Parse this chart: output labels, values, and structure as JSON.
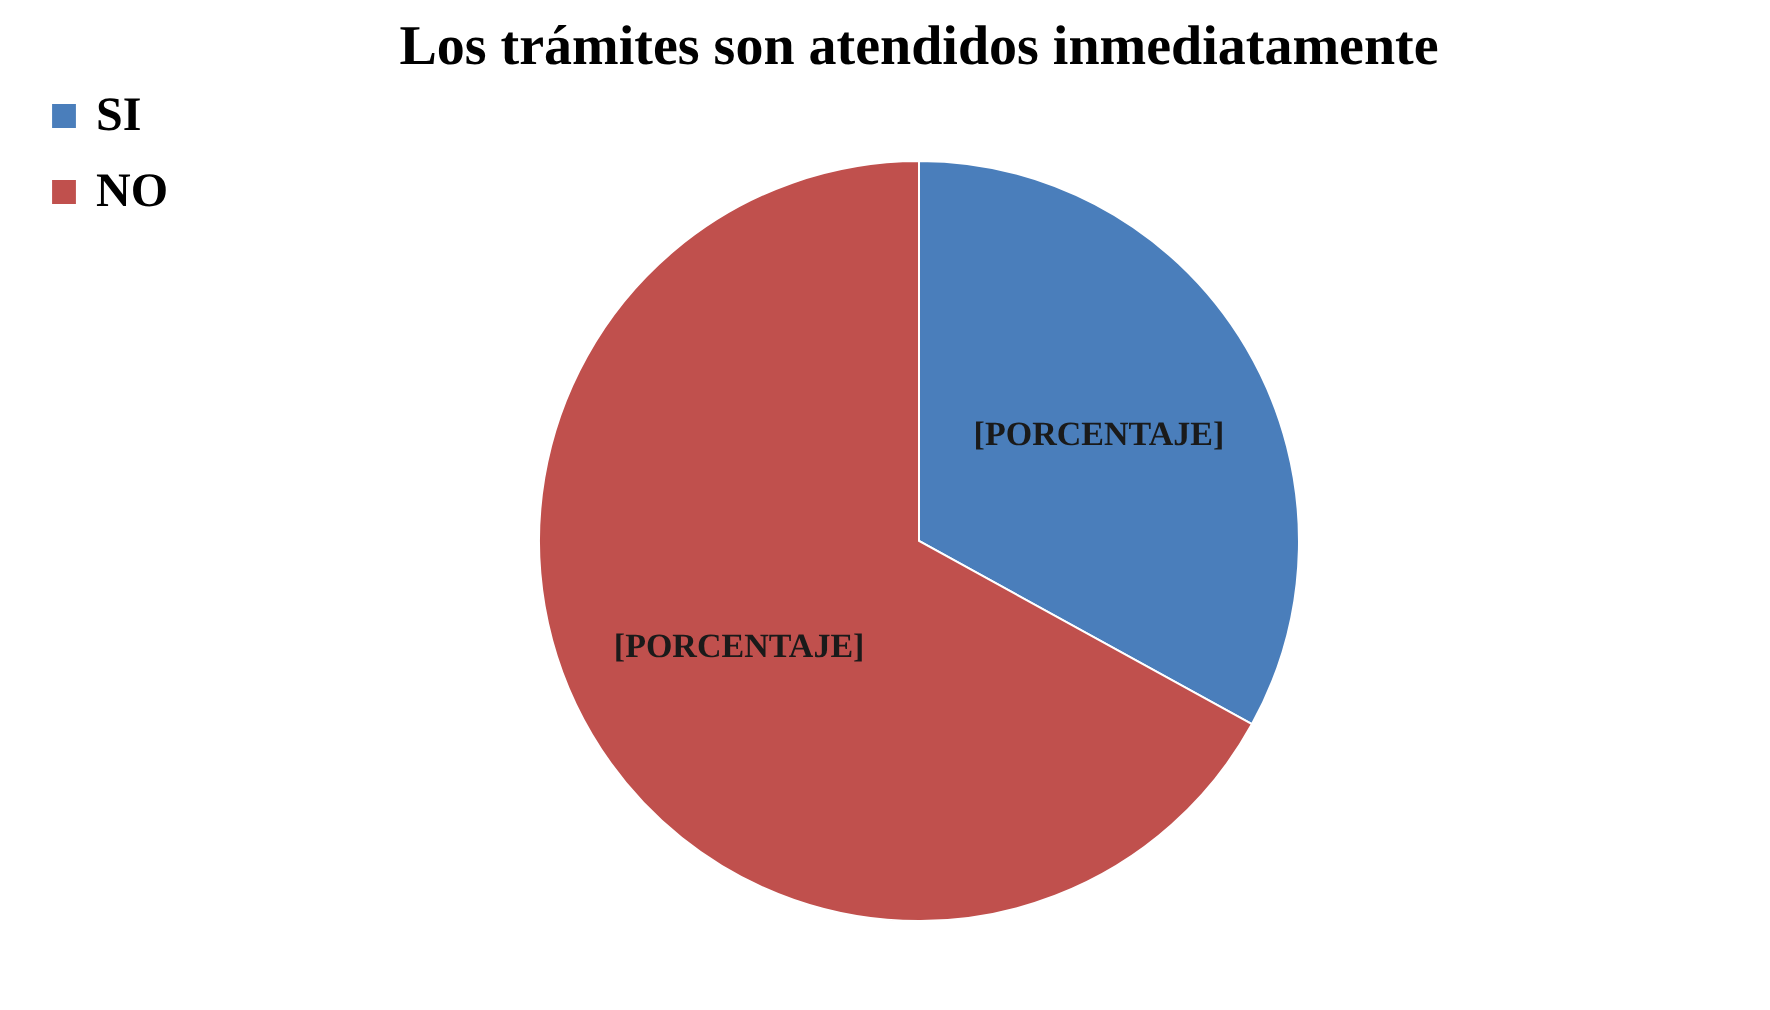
{
  "chart_data": {
    "type": "pie",
    "title": "Los trámites son atendidos inmediatamente",
    "categories": [
      "SI",
      "NO"
    ],
    "values": [
      33,
      67
    ],
    "colors": [
      "#4a7ebb",
      "#c0504d"
    ],
    "value_labels": [
      "[PORCENTAJE]",
      "[PORCENTAJE]"
    ],
    "legend": "left"
  }
}
